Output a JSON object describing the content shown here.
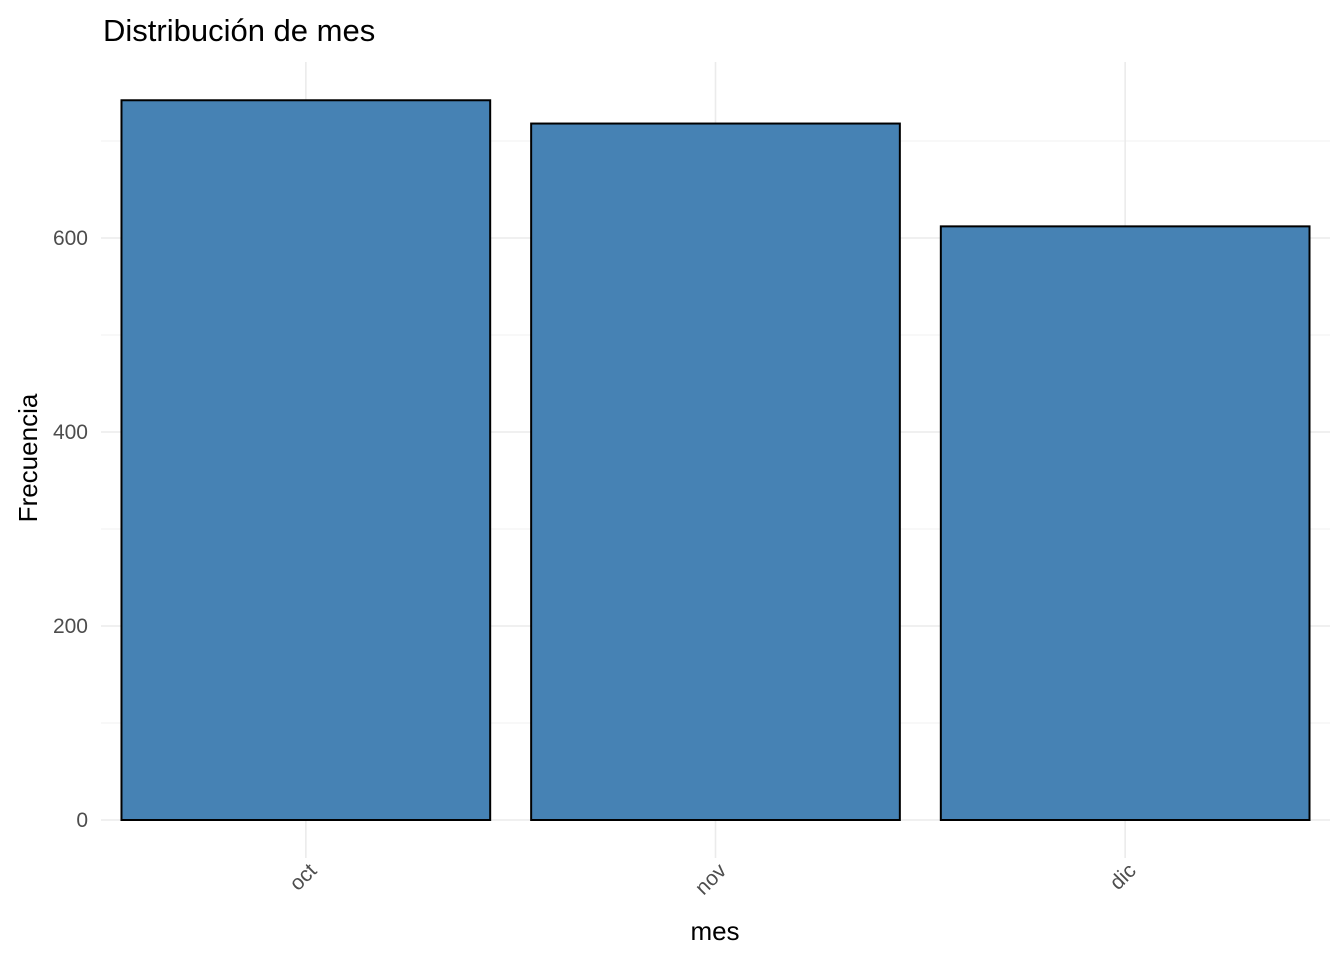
{
  "chart_data": {
    "type": "bar",
    "title": "Distribución de mes",
    "xlabel": "mes",
    "ylabel": "Frecuencia",
    "categories": [
      "oct",
      "nov",
      "dic"
    ],
    "values": [
      742,
      718,
      612
    ],
    "ylim": [
      0,
      780
    ],
    "yticks": [
      0,
      200,
      400,
      600
    ],
    "ytick_labels": [
      "0",
      "200",
      "400",
      "600"
    ],
    "grid": true,
    "x_tick_label_rotation": "45 degrees",
    "bar_color": "#4682b4",
    "bar_outline_color": "#000000"
  }
}
